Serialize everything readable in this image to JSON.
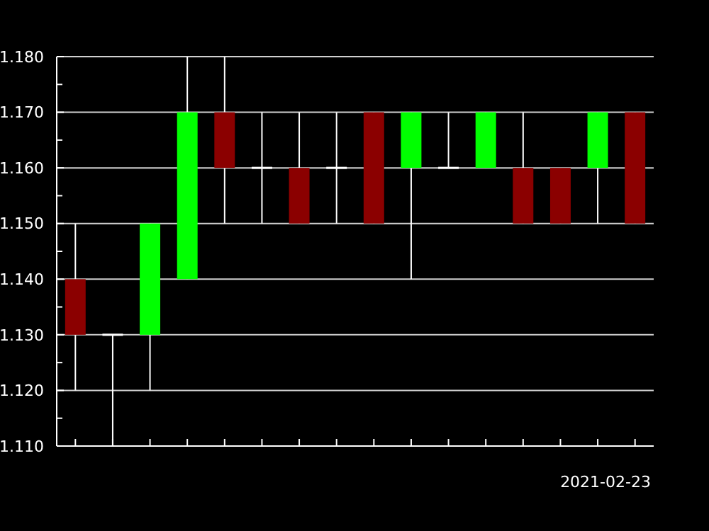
{
  "chart_data": {
    "type": "candlestick",
    "categories": [
      null,
      null,
      null,
      null,
      null,
      null,
      null,
      null,
      null,
      null,
      null,
      null,
      null,
      null,
      null,
      null
    ],
    "ohlc": [
      [
        1.14,
        1.15,
        1.12,
        1.13
      ],
      [
        1.13,
        1.13,
        1.11,
        1.13
      ],
      [
        1.13,
        1.15,
        1.12,
        1.15
      ],
      [
        1.14,
        1.18,
        1.14,
        1.17
      ],
      [
        1.17,
        1.18,
        1.15,
        1.16
      ],
      [
        1.16,
        1.17,
        1.15,
        1.16
      ],
      [
        1.16,
        1.17,
        1.15,
        1.15
      ],
      [
        1.16,
        1.17,
        1.15,
        1.16
      ],
      [
        1.17,
        1.17,
        1.15,
        1.15
      ],
      [
        1.16,
        1.17,
        1.14,
        1.17
      ],
      [
        1.16,
        1.17,
        1.16,
        1.16
      ],
      [
        1.16,
        1.17,
        1.16,
        1.17
      ],
      [
        1.16,
        1.17,
        1.15,
        1.15
      ],
      [
        1.16,
        1.16,
        1.15,
        1.15
      ],
      [
        1.16,
        1.17,
        1.15,
        1.17
      ],
      [
        1.17,
        1.17,
        1.15,
        1.15
      ]
    ],
    "colors": [
      "#8b0000",
      "#ffffff",
      "#00ff00",
      "#00ff00",
      "#8b0000",
      "#ffffff",
      "#8b0000",
      "#ffffff",
      "#8b0000",
      "#00ff00",
      "#ffffff",
      "#00ff00",
      "#8b0000",
      "#8b0000",
      "#00ff00",
      "#8b0000"
    ],
    "ylim": [
      1.11,
      1.18
    ],
    "yticks": [
      {
        "value": 1.11,
        "label": "1.110"
      },
      {
        "value": 1.115,
        "label": null
      },
      {
        "value": 1.12,
        "label": "1.120"
      },
      {
        "value": 1.125,
        "label": null
      },
      {
        "value": 1.13,
        "label": "1.130"
      },
      {
        "value": 1.135,
        "label": null
      },
      {
        "value": 1.14,
        "label": "1.140"
      },
      {
        "value": 1.145,
        "label": null
      },
      {
        "value": 1.15,
        "label": "1.150"
      },
      {
        "value": 1.155,
        "label": null
      },
      {
        "value": 1.16,
        "label": "1.160"
      },
      {
        "value": 1.165,
        "label": null
      },
      {
        "value": 1.17,
        "label": "1.170"
      },
      {
        "value": 1.175,
        "label": null
      },
      {
        "value": 1.18,
        "label": "1.180"
      }
    ],
    "grid": "y",
    "tick_labels": "y",
    "annotations": [
      "2021-02-23"
    ]
  }
}
